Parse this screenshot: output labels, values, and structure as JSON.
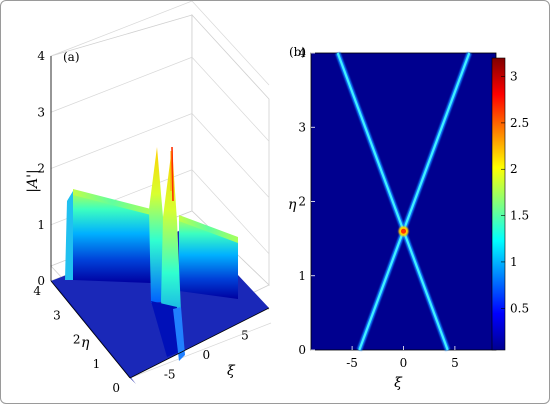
{
  "chart_data": [
    {
      "type": "surface3d",
      "panel_label": "(a)",
      "zlabel": "|A'|",
      "xlabel": "ξ",
      "ylabel": "η",
      "zlim": [
        0,
        4
      ],
      "z_ticks": [
        "0",
        "1",
        "2",
        "3",
        "4"
      ],
      "eta_ticks": [
        "0",
        "1",
        "2",
        "3",
        "4"
      ],
      "xi_ticks": [
        "-5",
        "0",
        "5"
      ],
      "background_level": 1.3,
      "peak_value": 3.2,
      "peak_location": {
        "xi": 0,
        "eta": 1.6
      },
      "colormap": "jet"
    },
    {
      "type": "heatmap",
      "panel_label": "(b)",
      "xlabel": "ξ",
      "ylabel": "η",
      "xlim": [
        -9,
        9
      ],
      "ylim": [
        0,
        4
      ],
      "x_ticks": [
        "-5",
        "0",
        "5"
      ],
      "y_ticks": [
        "0",
        "1",
        "2",
        "3",
        "4"
      ],
      "colorbar_ticks": [
        "0.5",
        "1",
        "1.5",
        "2",
        "2.5",
        "3"
      ],
      "colorbar_range": [
        0.05,
        3.2
      ],
      "lines": [
        {
          "from": {
            "xi": -4.3,
            "eta": 0
          },
          "to": {
            "xi": 6.4,
            "eta": 4
          }
        },
        {
          "from": {
            "xi": 4.3,
            "eta": 0
          },
          "to": {
            "xi": -6.4,
            "eta": 4
          }
        }
      ],
      "crossing": {
        "xi": 0,
        "eta": 1.6,
        "value": 3.2
      },
      "background_color": "#00008f",
      "colormap": "jet"
    }
  ]
}
